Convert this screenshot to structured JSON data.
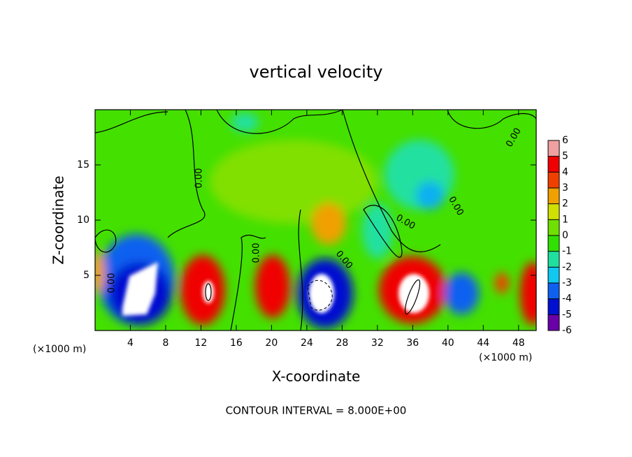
{
  "chart_data": {
    "type": "heatmap",
    "title": "vertical velocity",
    "x_label": "X-coordinate",
    "y_label": "Z-coordinate",
    "x_unit_left": "(×1000 m)",
    "x_unit_right": "(×1000 m)",
    "xlim": [
      0,
      50
    ],
    "xticks": [
      4,
      8,
      12,
      16,
      20,
      24,
      28,
      32,
      36,
      40,
      44,
      48
    ],
    "ylim": [
      0,
      20
    ],
    "yticks": [
      5,
      10,
      15
    ],
    "colorbar": {
      "lim": [
        -6,
        6
      ],
      "ticks": [
        -6,
        -5,
        -4,
        -3,
        -2,
        -1,
        0,
        1,
        2,
        3,
        4,
        5,
        6
      ],
      "colors": [
        "#6a00a8",
        "#0010d0",
        "#1060f0",
        "#10c8f0",
        "#20e0a0",
        "#30e000",
        "#70e000",
        "#d0e000",
        "#f0a000",
        "#f04000",
        "#f00000",
        "#f0a0a0"
      ]
    },
    "contour_labels": [
      "0.00",
      "0.00",
      "0.00",
      "0.00",
      "0.00",
      "0.00",
      "0.00"
    ],
    "annotation": "CONTOUR INTERVAL = 8.000E+00"
  }
}
